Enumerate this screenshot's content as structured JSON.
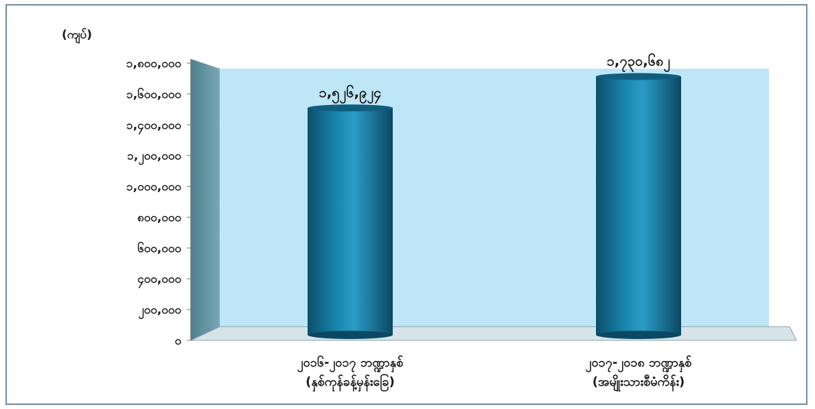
{
  "chart_data": {
    "type": "bar",
    "unit_label": "(ကျပ်)",
    "categories": [
      [
        "၂၀၁၆-၂၀၁၇ ဘဏ္ဍာနှစ်",
        "(နှစ်ကုန်ခန့်မှန်းခြေ)"
      ],
      [
        "၂၀၁၇-၂၀၁၈ ဘဏ္ဍာနှစ်",
        "(အမျိုးသားစီမံကိန်း)"
      ]
    ],
    "values": [
      1526924,
      1730682
    ],
    "data_labels": [
      "၁,၅၂၆,၉၂၄",
      "၁,၇၃၀,၆၈၂"
    ],
    "ylim": [
      0,
      1800000
    ],
    "yticks": [
      {
        "value": 0,
        "label": "၀"
      },
      {
        "value": 200000,
        "label": "၂၀၀,၀၀၀"
      },
      {
        "value": 400000,
        "label": "၄၀၀,၀၀၀"
      },
      {
        "value": 600000,
        "label": "၆၀၀,၀၀၀"
      },
      {
        "value": 800000,
        "label": "၈၀၀,၀၀၀"
      },
      {
        "value": 1000000,
        "label": "၁,၀၀၀,၀၀၀"
      },
      {
        "value": 1200000,
        "label": "၁,၂၀၀,၀၀၀"
      },
      {
        "value": 1400000,
        "label": "၁,၄၀၀,၀၀၀"
      },
      {
        "value": 1600000,
        "label": "၁,၆၀၀,၀၀၀"
      },
      {
        "value": 1800000,
        "label": "၁,၈၀၀,၀၀၀"
      }
    ],
    "grid": false,
    "colors": {
      "bar": "#1a7fa6",
      "back_wall": "#bfe6f7",
      "side_wall": "#5f8f9e",
      "floor": "#d6e4ea"
    }
  }
}
